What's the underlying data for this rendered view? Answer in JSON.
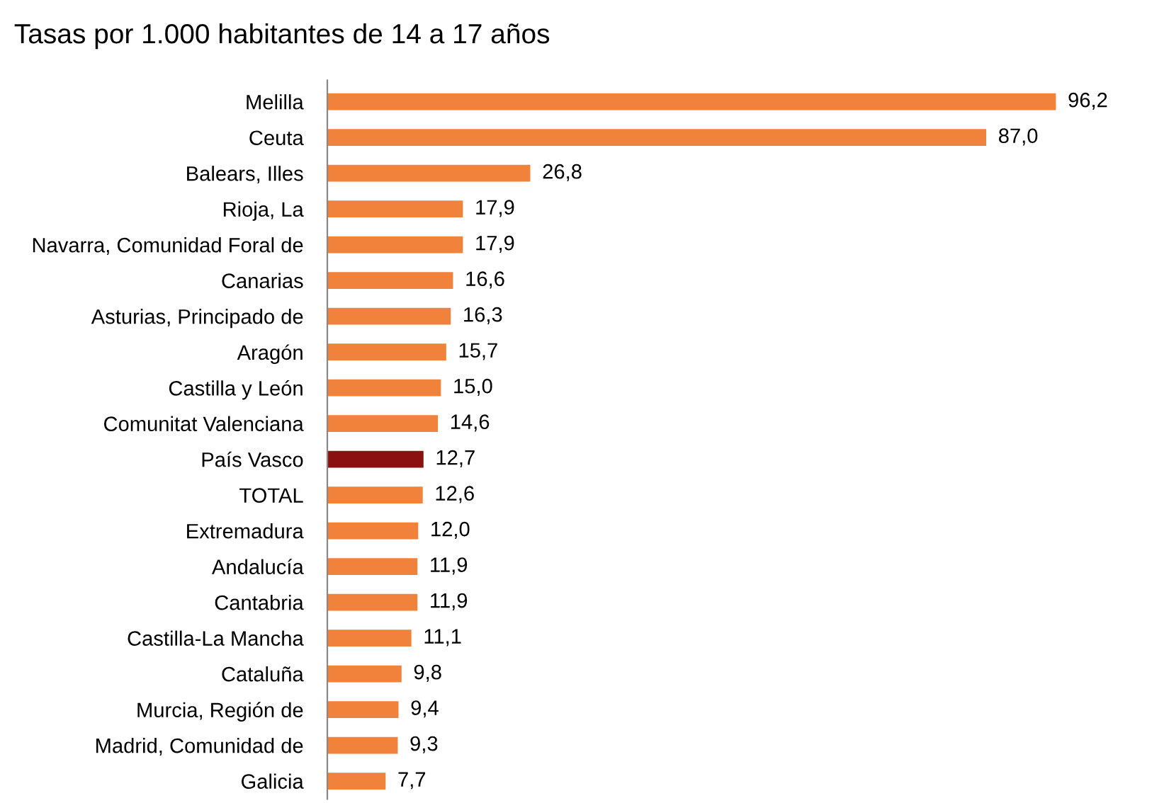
{
  "chart_data": {
    "type": "bar",
    "orientation": "horizontal",
    "title": "Tasas por 1.000 habitantes de 14 a 17 años",
    "categories": [
      "Melilla",
      "Ceuta",
      "Balears, Illes",
      "Rioja, La",
      "Navarra, Comunidad Foral de",
      "Canarias",
      "Asturias, Principado de",
      "Aragón",
      "Castilla y León",
      "Comunitat Valenciana",
      "País Vasco",
      "TOTAL",
      "Extremadura",
      "Andalucía",
      "Cantabria",
      "Castilla-La Mancha",
      "Cataluña",
      "Murcia, Región de",
      "Madrid, Comunidad de",
      "Galicia"
    ],
    "values": [
      96.2,
      87.0,
      26.8,
      17.9,
      17.9,
      16.6,
      16.3,
      15.7,
      15.0,
      14.6,
      12.7,
      12.6,
      12.0,
      11.9,
      11.9,
      11.1,
      9.8,
      9.4,
      9.3,
      7.7
    ],
    "value_labels": [
      "96,2",
      "87,0",
      "26,8",
      "17,9",
      "17,9",
      "16,6",
      "16,3",
      "15,7",
      "15,0",
      "14,6",
      "12,7",
      "12,6",
      "12,0",
      "11,9",
      "11,9",
      "11,1",
      "9,8",
      "9,4",
      "9,3",
      "7,7"
    ],
    "colors": [
      "#f0823c",
      "#f0823c",
      "#f0823c",
      "#f0823c",
      "#f0823c",
      "#f0823c",
      "#f0823c",
      "#f0823c",
      "#f0823c",
      "#f0823c",
      "#8b1010",
      "#f0823c",
      "#f0823c",
      "#f0823c",
      "#f0823c",
      "#f0823c",
      "#f0823c",
      "#f0823c",
      "#f0823c",
      "#f0823c"
    ],
    "tick_labels": "y",
    "grid": false,
    "legend": false
  }
}
